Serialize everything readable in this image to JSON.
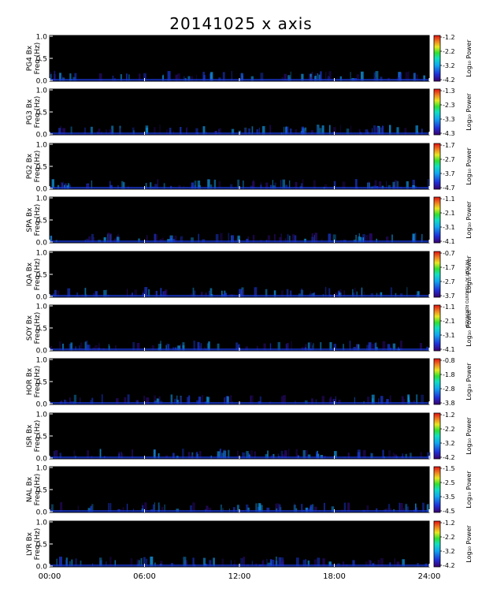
{
  "title": "20141025 x axis",
  "stamp": "PR PLOT AT TORONTO RDA.MIXED",
  "colors": {
    "background": "#000000",
    "colorbar": [
      "#3a006e",
      "#1f2fd8",
      "#10a8f0",
      "#10e0c0",
      "#30e030",
      "#e8e820",
      "#f08020",
      "#e01010"
    ]
  },
  "chart_data": {
    "type": "heatmap",
    "x_ticks": [
      "00:00",
      "06:00",
      "12:00",
      "18:00",
      "24:00"
    ],
    "xlim": [
      0,
      24
    ],
    "ylim": [
      0,
      1.0
    ],
    "y_ticks": [
      "0.0",
      "0.5",
      "1.0"
    ],
    "colorbar_label": "Log₁₀ Power",
    "panels": [
      {
        "station": "PG4",
        "ylabel": "PG4 Bx\nFreq (Hz)",
        "cbar_ticks": [
          "-1.2",
          "-2.2",
          "-3.2",
          "-4.2"
        ]
      },
      {
        "station": "PG3",
        "ylabel": "PG3 Bx\nFreq (Hz)",
        "cbar_ticks": [
          "-1.3",
          "-2.3",
          "-3.3",
          "-4.3"
        ]
      },
      {
        "station": "PG2",
        "ylabel": "PG2 Bx\nFreq (Hz)",
        "cbar_ticks": [
          "-1.7",
          "-2.7",
          "-3.7",
          "-4.7"
        ]
      },
      {
        "station": "SPA",
        "ylabel": "SPA Bx\nFreq (Hz)",
        "cbar_ticks": [
          "-1.1",
          "-2.1",
          "-3.1",
          "-4.1"
        ]
      },
      {
        "station": "IQA",
        "ylabel": "IQA Bx\nFreq (Hz)",
        "cbar_ticks": [
          "-0.7",
          "-1.7",
          "-2.7",
          "-3.7"
        ]
      },
      {
        "station": "SOY",
        "ylabel": "SOY Bx\nFreq (Hz)",
        "cbar_ticks": [
          "-1.1",
          "-2.1",
          "-3.1",
          "-4.1"
        ]
      },
      {
        "station": "HOR",
        "ylabel": "HOR Bx\nFreq (Hz)",
        "cbar_ticks": [
          "-0.8",
          "-1.8",
          "-2.8",
          "-3.8"
        ]
      },
      {
        "station": "ISR",
        "ylabel": "ISR Bx\nFreq (Hz)",
        "cbar_ticks": [
          "-1.2",
          "-2.2",
          "-3.2",
          "-4.2"
        ]
      },
      {
        "station": "NAL",
        "ylabel": "NAL Bx\nFreq (Hz)",
        "cbar_ticks": [
          "-1.5",
          "-2.5",
          "-3.5",
          "-4.5"
        ]
      },
      {
        "station": "LYR",
        "ylabel": "LYR Bx\nFreq (Hz)",
        "cbar_ticks": [
          "-1.2",
          "-2.2",
          "-3.2",
          "-4.2"
        ]
      }
    ]
  }
}
